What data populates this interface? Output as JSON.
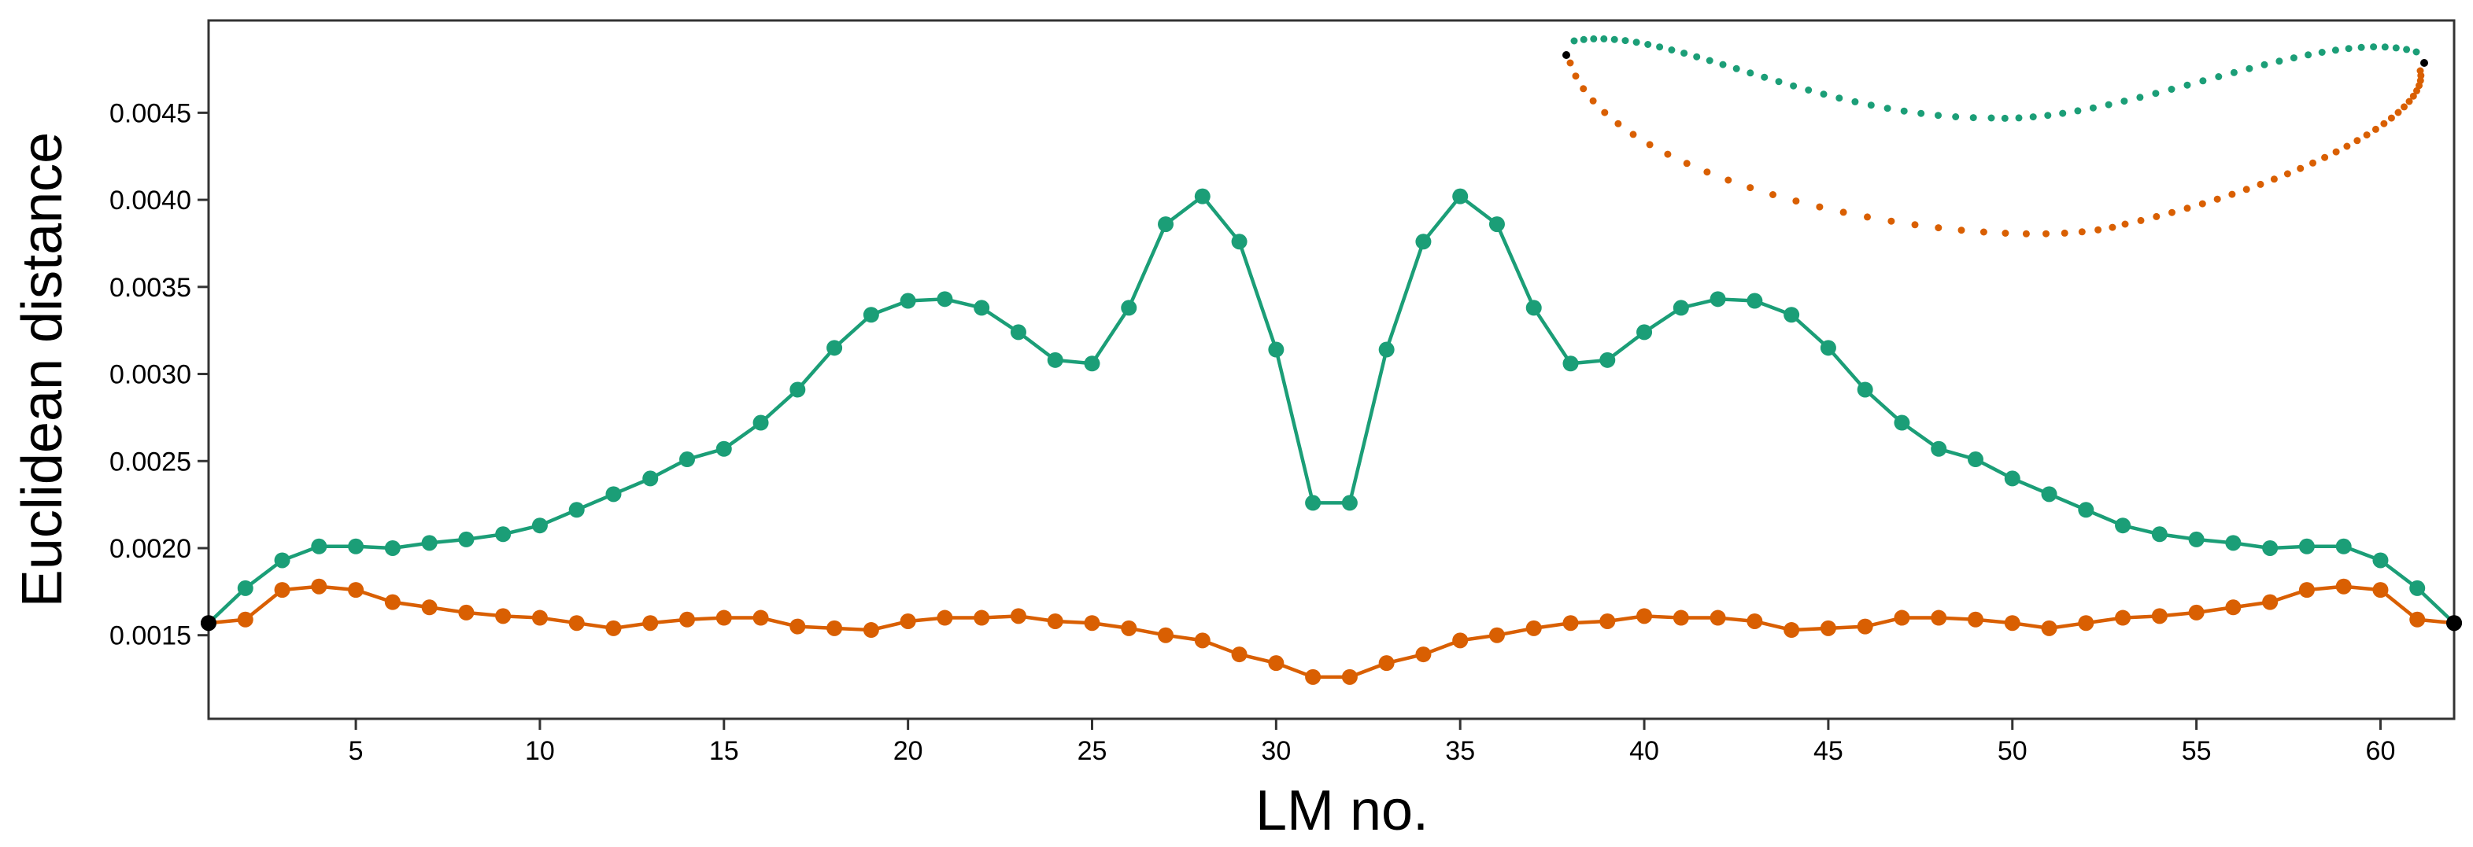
{
  "chart_data": {
    "type": "line",
    "title": "",
    "xlabel": "LM no.",
    "ylabel": "Euclidean distance",
    "xlim": [
      1,
      62
    ],
    "ylim": [
      0.00102,
      0.00503
    ],
    "xticks": [
      5,
      10,
      15,
      20,
      25,
      30,
      35,
      40,
      45,
      50,
      55,
      60
    ],
    "yticks": [
      0.0015,
      0.002,
      0.0025,
      0.003,
      0.0035,
      0.004,
      0.0045
    ],
    "ytick_labels": [
      "0.0015",
      "0.0020",
      "0.0025",
      "0.0030",
      "0.0035",
      "0.0040",
      "0.0045"
    ],
    "grid": false,
    "legend": "none",
    "x": [
      1,
      2,
      3,
      4,
      5,
      6,
      7,
      8,
      9,
      10,
      11,
      12,
      13,
      14,
      15,
      16,
      17,
      18,
      19,
      20,
      21,
      22,
      23,
      24,
      25,
      26,
      27,
      28,
      29,
      30,
      31,
      32,
      33,
      34,
      35,
      36,
      37,
      38,
      39,
      40,
      41,
      42,
      43,
      44,
      45,
      46,
      47,
      48,
      49,
      50,
      51,
      52,
      53,
      54,
      55,
      56,
      57,
      58,
      59,
      60,
      61,
      62
    ],
    "series": [
      {
        "name": "green",
        "color": "#1b9e77",
        "values": [
          0.00157,
          0.00177,
          0.00193,
          0.00201,
          0.00201,
          0.002,
          0.00203,
          0.00205,
          0.00208,
          0.00213,
          0.00222,
          0.00231,
          0.0024,
          0.00251,
          0.00257,
          0.00272,
          0.00291,
          0.00315,
          0.00334,
          0.00342,
          0.00343,
          0.00338,
          0.00324,
          0.00308,
          0.00306,
          0.00338,
          0.00386,
          0.00402,
          0.00376,
          0.00314,
          0.00226,
          0.00226,
          0.00314,
          0.00376,
          0.00402,
          0.00386,
          0.00338,
          0.00306,
          0.00308,
          0.00324,
          0.00338,
          0.00343,
          0.00342,
          0.00334,
          0.00315,
          0.00291,
          0.00272,
          0.00257,
          0.00251,
          0.0024,
          0.00231,
          0.00222,
          0.00213,
          0.00208,
          0.00205,
          0.00203,
          0.002,
          0.00201,
          0.00201,
          0.00193,
          0.00177,
          0.00157
        ]
      },
      {
        "name": "orange",
        "color": "#d95f02",
        "values": [
          0.00157,
          0.00159,
          0.00176,
          0.00178,
          0.00176,
          0.00169,
          0.00166,
          0.00163,
          0.00161,
          0.0016,
          0.00157,
          0.00154,
          0.00157,
          0.00159,
          0.0016,
          0.0016,
          0.00155,
          0.00154,
          0.00153,
          0.00158,
          0.0016,
          0.0016,
          0.00161,
          0.00158,
          0.00157,
          0.00154,
          0.0015,
          0.00147,
          0.00139,
          0.00134,
          0.00126,
          0.00126,
          0.00134,
          0.00139,
          0.00147,
          0.0015,
          0.00154,
          0.00157,
          0.00158,
          0.00161,
          0.0016,
          0.0016,
          0.00158,
          0.00153,
          0.00154,
          0.00155,
          0.0016,
          0.0016,
          0.00159,
          0.00157,
          0.00154,
          0.00157,
          0.0016,
          0.00161,
          0.00163,
          0.00166,
          0.00169,
          0.00176,
          0.00178,
          0.00176,
          0.00159,
          0.00157
        ]
      }
    ],
    "endpoint_color": "#000000",
    "inset": {
      "type": "outline",
      "description_series": [
        "green upper contour",
        "orange lower contour"
      ],
      "upper_color": "#1b9e77",
      "lower_color": "#d95f02",
      "endpoint_color": "#000000"
    }
  }
}
